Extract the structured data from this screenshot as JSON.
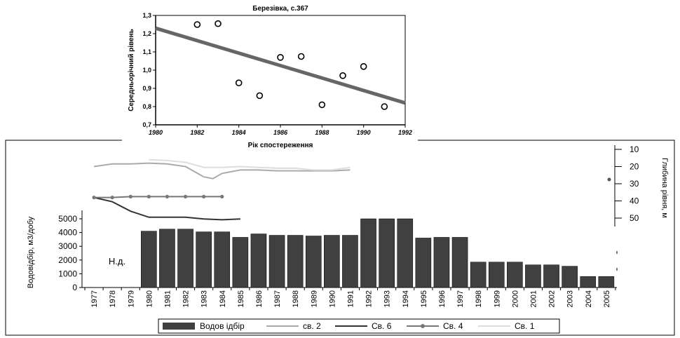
{
  "chart_data": [
    {
      "type": "scatter",
      "title": "Березівка, с.367",
      "xlabel": "Рік спостереження",
      "ylabel": "Середньорічний рівень",
      "xlim": [
        1980,
        1992
      ],
      "ylim": [
        0.7,
        1.3
      ],
      "x_ticks": [
        "1980",
        "1982",
        "1984",
        "1986",
        "1988",
        "1990",
        "1992"
      ],
      "y_ticks": [
        "0,7",
        "0,8",
        "0,9",
        "1,0",
        "1,1",
        "1,2",
        "1,3"
      ],
      "grid": false,
      "points": [
        {
          "x": 1982,
          "y": 1.25
        },
        {
          "x": 1983,
          "y": 1.255
        },
        {
          "x": 1984,
          "y": 0.93
        },
        {
          "x": 1985,
          "y": 0.86
        },
        {
          "x": 1986,
          "y": 1.07
        },
        {
          "x": 1987,
          "y": 1.075
        },
        {
          "x": 1988,
          "y": 0.81
        },
        {
          "x": 1989,
          "y": 0.97
        },
        {
          "x": 1990,
          "y": 1.02
        },
        {
          "x": 1991,
          "y": 0.8
        }
      ],
      "trend": {
        "x": [
          1980,
          1992
        ],
        "y": [
          1.23,
          0.82
        ]
      },
      "colors": {
        "points": "#000000",
        "trend": "#666666"
      }
    },
    {
      "type": "bar",
      "categories": [
        "1977",
        "1978",
        "1979",
        "1980",
        "1981",
        "1982",
        "1983",
        "1984",
        "1985",
        "1986",
        "1987",
        "1988",
        "1989",
        "1990",
        "1991",
        "1992",
        "1993",
        "1994",
        "1995",
        "1996",
        "1997",
        "1998",
        "1999",
        "2000",
        "2001",
        "2002",
        "2003",
        "2004",
        "2005"
      ],
      "values": [
        null,
        null,
        null,
        4100,
        4250,
        4250,
        4050,
        4050,
        3650,
        3900,
        3800,
        3800,
        3750,
        3800,
        3800,
        5000,
        5000,
        5000,
        3600,
        3650,
        3650,
        1850,
        1850,
        1850,
        1650,
        1650,
        1550,
        800,
        800
      ],
      "ylabel": "Водовідбір, м3/добу",
      "ylim": [
        0,
        5000
      ],
      "y_ticks": [
        "0",
        "1000",
        "2000",
        "3000",
        "4000",
        "5000"
      ],
      "annotation": "Н.д.",
      "y2label": "Глибина рівня, м",
      "y2_ticks": [
        "10",
        "20",
        "30",
        "40",
        "50"
      ],
      "y2lim": [
        10,
        50
      ],
      "colors": {
        "bars": "#404040"
      },
      "legend": [
        "Водов ідбір",
        "св. 2",
        "Св. 6",
        "Св. 4",
        "Св. 1"
      ],
      "legend_position": "bottom",
      "series": [
        {
          "name": "св. 2",
          "color": "#aaaaaa",
          "x": [
            1977,
            1978,
            1979,
            1980,
            1981,
            1982,
            1983,
            1983.5,
            1984,
            1985,
            1986,
            1987,
            1988,
            1989,
            1990,
            1991
          ],
          "depth": [
            20,
            18.5,
            18.5,
            18,
            18.5,
            20,
            26,
            27,
            24,
            22,
            22,
            22.5,
            22.5,
            22.5,
            22.5,
            22
          ]
        },
        {
          "name": "Св. 6",
          "color": "#333333",
          "x": [
            1977,
            1978,
            1979,
            1980,
            1981,
            1982,
            1983,
            1984,
            1985
          ],
          "depth": [
            38,
            40.5,
            46,
            49.5,
            49.5,
            49.5,
            50.5,
            51,
            50.5
          ]
        },
        {
          "name": "Св. 4",
          "color": "#777777",
          "x": [
            1977,
            1978,
            1979,
            1980,
            1981,
            1982,
            1983,
            1984
          ],
          "depth": [
            38,
            38,
            37.5,
            37.5,
            37.5,
            37.5,
            37.5,
            37.5
          ]
        },
        {
          "name": "Св. 1",
          "color": "#dddddd",
          "x": [
            1980,
            1981,
            1982,
            1983,
            1984,
            1985,
            1986,
            1987,
            1988,
            1989,
            1990,
            1991
          ],
          "depth": [
            16,
            16.5,
            17.5,
            20.5,
            20.5,
            20,
            20.5,
            21,
            21,
            22,
            22,
            20.5
          ]
        }
      ]
    }
  ]
}
